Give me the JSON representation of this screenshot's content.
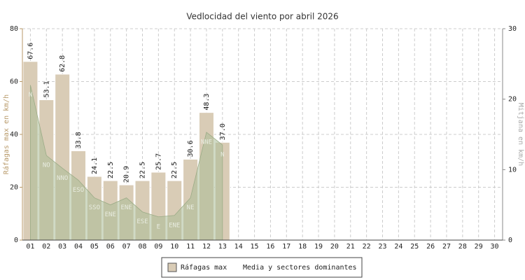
{
  "chart_data": {
    "type": "bar",
    "title": "Vedlocidad del viento por abril 2026",
    "ylabel": "Ráfagas max en km/h",
    "y2label": "Mitjana en km/h",
    "categories": [
      "01",
      "02",
      "03",
      "04",
      "05",
      "06",
      "07",
      "08",
      "09",
      "10",
      "11",
      "12",
      "13",
      "14",
      "15",
      "16",
      "17",
      "18",
      "19",
      "20",
      "21",
      "22",
      "23",
      "24",
      "25",
      "26",
      "27",
      "28",
      "29",
      "30"
    ],
    "series": [
      {
        "name": "Ráfagas max",
        "color": "#d9ccb6",
        "values": [
          67.6,
          53.1,
          62.8,
          33.8,
          24.1,
          22.5,
          20.9,
          22.5,
          25.7,
          22.5,
          30.6,
          48.3,
          37.0,
          null,
          null,
          null,
          null,
          null,
          null,
          null,
          null,
          null,
          null,
          null,
          null,
          null,
          null,
          null,
          null,
          null
        ],
        "value_labels": [
          "67.6",
          "53.1",
          "62.8",
          "33.8",
          "24.1",
          "22.5",
          "20.9",
          "22.5",
          "25.7",
          "22.5",
          "30.6",
          "48.3",
          "37.0",
          null,
          null,
          null,
          null,
          null,
          null,
          null,
          null,
          null,
          null,
          null,
          null,
          null,
          null,
          null,
          null,
          null
        ]
      },
      {
        "name": "Media y sectores dominantes",
        "color": "#a9bb96",
        "axis": "y2",
        "values": [
          22,
          12,
          10.2,
          8.5,
          6,
          5,
          6,
          4,
          3.3,
          3.5,
          6,
          15.3,
          13.5,
          null,
          null,
          null,
          null,
          null,
          null,
          null,
          null,
          null,
          null,
          null,
          null,
          null,
          null,
          null,
          null,
          null
        ],
        "sectors": [
          "N",
          "NO",
          "NNO",
          "ESO",
          "SSO",
          "ENE",
          "ENE",
          "ESE",
          "E",
          "ENE",
          "NE",
          "NNE",
          "N",
          null,
          null,
          null,
          null,
          null,
          null,
          null,
          null,
          null,
          null,
          null,
          null,
          null,
          null,
          null,
          null,
          null
        ]
      }
    ],
    "ylim": [
      0,
      80
    ],
    "yticks": [
      0,
      20,
      40,
      60,
      80
    ],
    "y2lim": [
      0,
      30
    ],
    "y2ticks": [
      0,
      10,
      20,
      30
    ],
    "grid": true
  }
}
